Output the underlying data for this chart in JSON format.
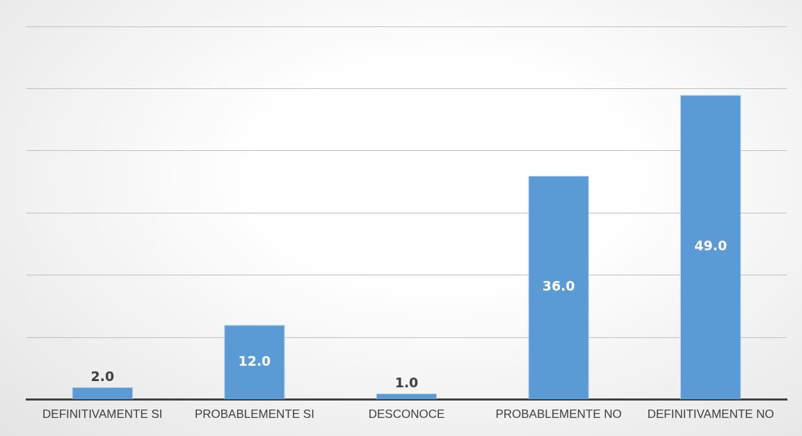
{
  "chart_data": {
    "type": "bar",
    "categories": [
      "DEFINITIVAMENTE SI",
      "PROBABLEMENTE SI",
      "DESCONOCE",
      "PROBABLEMENTE NO",
      "DEFINITIVAMENTE NO"
    ],
    "values": [
      2,
      12,
      1,
      36,
      49
    ],
    "value_labels": [
      "2.0",
      "12.0",
      "1.0",
      "36.0",
      "49.0"
    ],
    "color": "#5b9bd5",
    "ylim": [
      0,
      60
    ],
    "yticks": [
      {
        "value": 0,
        "label": null
      },
      {
        "value": 10,
        "label": null
      },
      {
        "value": 20,
        "label": null
      },
      {
        "value": 30,
        "label": null
      },
      {
        "value": 40,
        "label": null
      },
      {
        "value": 50,
        "label": null
      },
      {
        "value": 60,
        "label": null
      }
    ],
    "grid": "y",
    "tick_labels": "x",
    "legend": false
  }
}
